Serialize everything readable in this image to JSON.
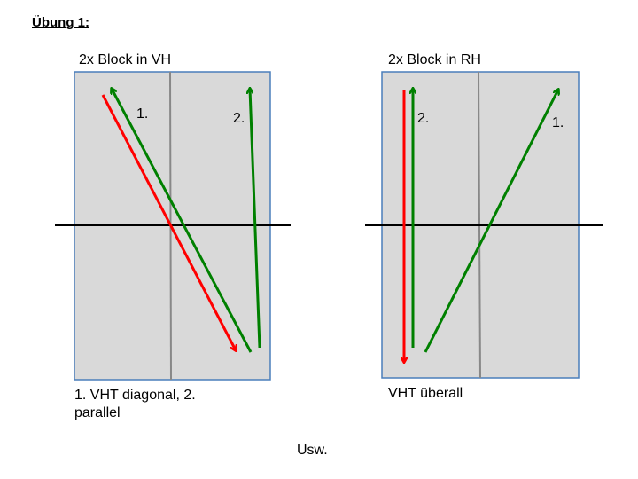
{
  "title": "Übung 1:",
  "panels": [
    {
      "heading": "2x Block in VH",
      "labels": [
        "1.",
        "2."
      ],
      "caption": "1. VHT diagonal, 2. parallel"
    },
    {
      "heading": "2x Block in RH",
      "labels": [
        "2.",
        "1."
      ],
      "caption": "VHT überall"
    }
  ],
  "footer": "Usw."
}
